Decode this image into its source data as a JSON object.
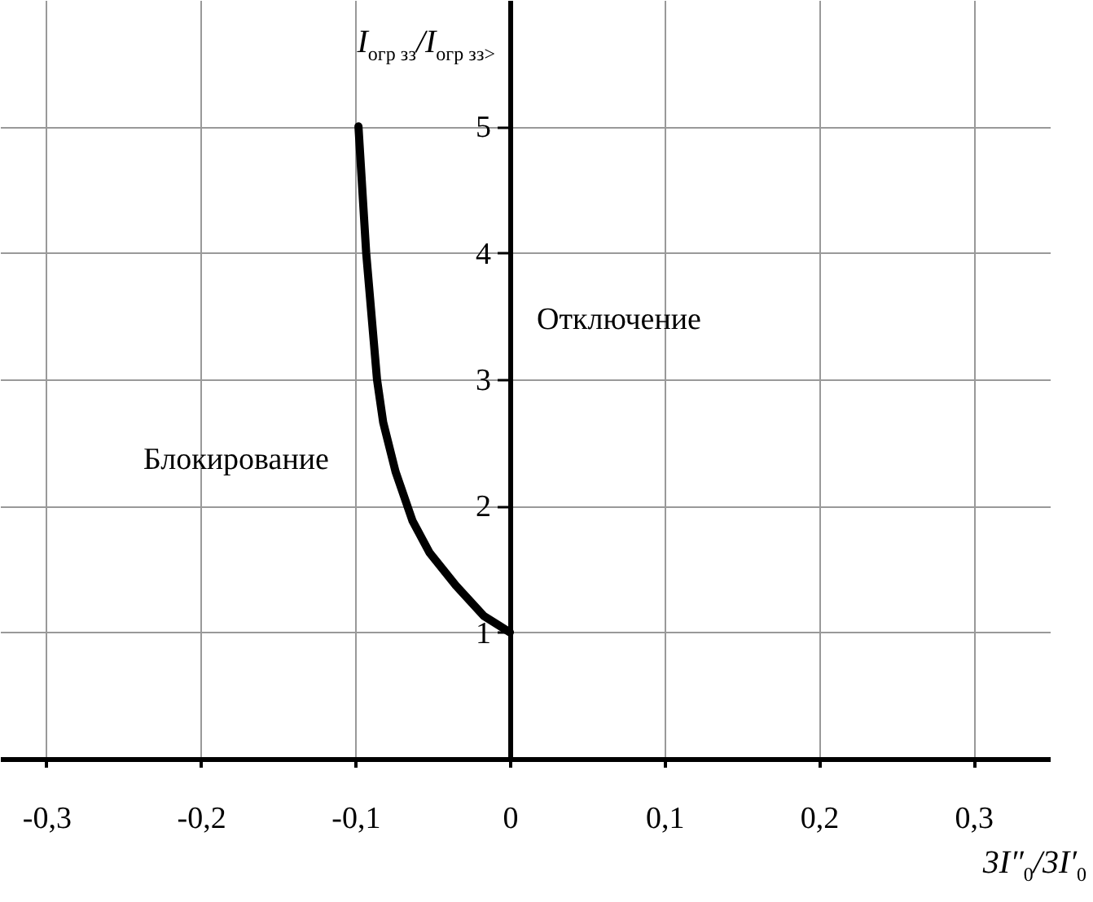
{
  "chart_data": {
    "type": "line",
    "xlabel": "3I″$_{0}$/3I′$_{0}$",
    "ylabel": "I$_{огр зз}$/I$_{огр зз>}$",
    "x": [
      -0.098,
      -0.093,
      -0.086,
      -0.082,
      -0.074,
      -0.063,
      -0.052,
      -0.035,
      -0.017,
      0
    ],
    "series": [
      {
        "color": "#000000",
        "values": [
          5,
          4,
          3,
          2.66,
          2.27,
          1.88,
          1.63,
          1.37,
          1.13,
          1
        ]
      }
    ],
    "xlim": [
      -0.33,
      0.35
    ],
    "ylim": [
      0,
      6
    ],
    "xticks": [
      {
        "value": -0.3,
        "label": "-0,3"
      },
      {
        "value": -0.2,
        "label": "-0,2"
      },
      {
        "value": -0.1,
        "label": "-0,1"
      },
      0,
      {
        "value": 0.1,
        "label": "0,1"
      },
      {
        "value": 0.2,
        "label": "0,2"
      },
      {
        "value": 0.3,
        "label": "0,3"
      }
    ],
    "yticks": [
      1,
      2,
      3,
      4,
      5
    ],
    "grid": true,
    "marker": "none",
    "line_style": "solid",
    "annotations": [
      "Блокирование",
      "Отключение"
    ]
  }
}
